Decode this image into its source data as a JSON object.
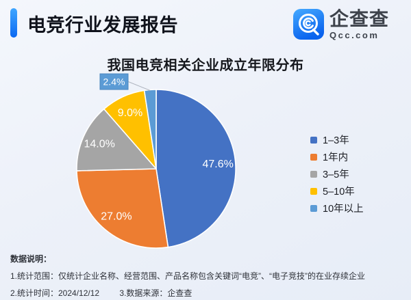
{
  "header": {
    "title": "电竞行业发展报告",
    "logo": {
      "name": "企查查",
      "domain": "Qcc.com"
    }
  },
  "chart_data": {
    "type": "pie",
    "title": "我国电竞相关企业成立年限分布",
    "unit": "percent",
    "start_angle_deg": 0,
    "direction": "clockwise",
    "legend_position": "right",
    "slices": [
      {
        "label": "1–3年",
        "value": 47.6,
        "color": "#4472C4"
      },
      {
        "label": "1年内",
        "value": 27.0,
        "color": "#ED7D31"
      },
      {
        "label": "3–5年",
        "value": 14.0,
        "color": "#A5A5A5"
      },
      {
        "label": "5–10年",
        "value": 9.0,
        "color": "#FFC000"
      },
      {
        "label": "10年以上",
        "value": 2.4,
        "color": "#5B9BD5"
      }
    ]
  },
  "notes": {
    "heading": "数据说明：",
    "scope": "1.统计范围：仅统计企业名称、经营范围、产品名称包含关键词“电竞”、“电子竞技”的在业存续企业",
    "time": "2.统计时间：2024/12/12",
    "source": "3.数据来源：企查查"
  },
  "colors": {
    "accent_blue": "#0b69f2",
    "background": "#edf1f9"
  }
}
